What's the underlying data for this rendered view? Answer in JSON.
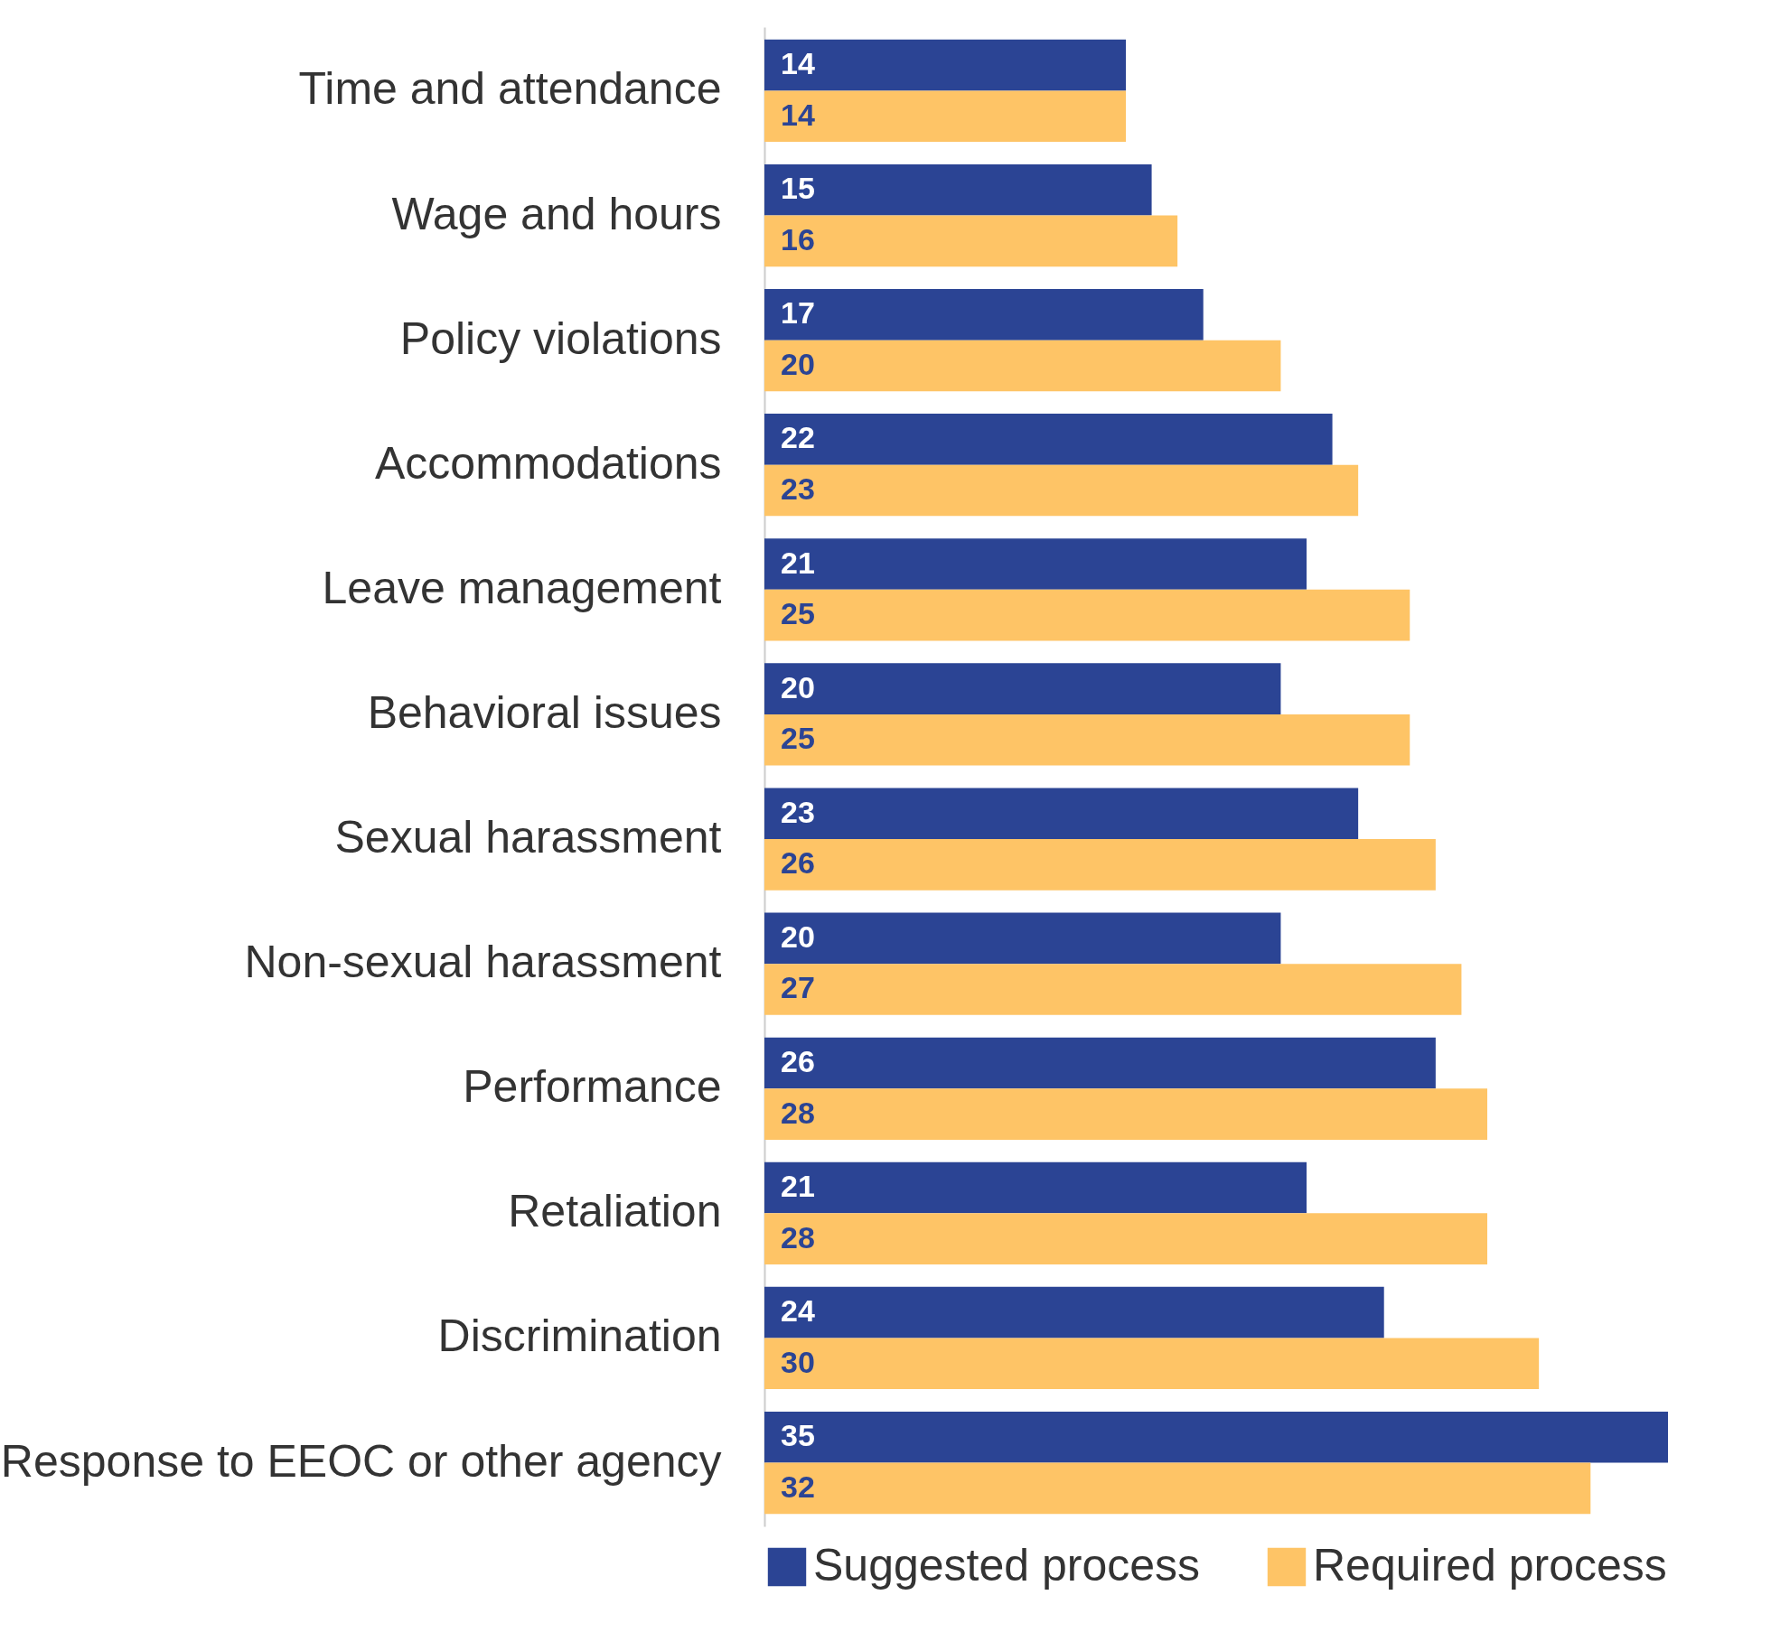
{
  "chart_data": {
    "type": "bar",
    "orientation": "horizontal",
    "categories": [
      "Time and attendance",
      "Wage and hours",
      "Policy violations",
      "Accommodations",
      "Leave management",
      "Behavioral issues",
      "Sexual harassment",
      "Non-sexual harassment",
      "Performance",
      "Retaliation",
      "Discrimination",
      "Response to EEOC or other agency"
    ],
    "series": [
      {
        "name": "Suggested process",
        "color": "#2b4494",
        "values": [
          14,
          15,
          17,
          22,
          21,
          20,
          23,
          20,
          26,
          21,
          24,
          35
        ]
      },
      {
        "name": "Required process",
        "color": "#fec466",
        "values": [
          14,
          16,
          20,
          23,
          25,
          25,
          26,
          27,
          28,
          28,
          30,
          32
        ]
      }
    ],
    "data_labels": true,
    "legend": "bottom",
    "tick_labels": "y"
  }
}
